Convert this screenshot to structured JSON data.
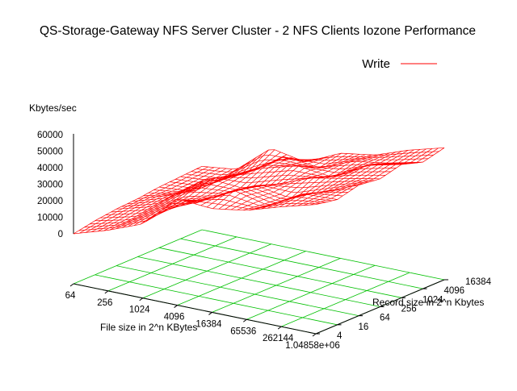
{
  "chart_data": {
    "type": "surface-3d",
    "title": "QS-Storage-Gateway NFS Server Cluster - 2 NFS Clients Iozone Performance",
    "zlabel": "Kbytes/sec",
    "xlabel": "File size in 2^n KBytes",
    "ylabel": "Record size in 2^n Kbytes",
    "legend": {
      "position": "top-right",
      "entries": [
        {
          "name": "Write",
          "color": "#ff0000"
        }
      ]
    },
    "x_ticks": [
      "64",
      "256",
      "1024",
      "4096",
      "16384",
      "65536",
      "262144",
      "1.04858e+06"
    ],
    "y_ticks": [
      "4",
      "16",
      "64",
      "256",
      "1024",
      "4096",
      "16384"
    ],
    "z_ticks": [
      "0",
      "10000",
      "20000",
      "30000",
      "40000",
      "50000",
      "60000"
    ],
    "zlim": [
      0,
      60000
    ],
    "grid": true,
    "series": [
      {
        "name": "Write",
        "x_file_size_kb": [
          64,
          256,
          1024,
          4096,
          16384,
          65536,
          262144,
          524288
        ],
        "y_record_size_kb": [
          4,
          16,
          64,
          256,
          1024,
          4096,
          16384
        ],
        "z_kbytes_per_sec": [
          [
            0,
            8000,
            18000,
            42000,
            40000,
            44000,
            52000,
            59000
          ],
          [
            3000,
            9000,
            22000,
            33000,
            47000,
            41000,
            55000,
            56000
          ],
          [
            5000,
            12000,
            25000,
            31000,
            44000,
            40000,
            50000,
            60000
          ],
          [
            6000,
            14000,
            32000,
            30000,
            38000,
            48000,
            53000,
            58000
          ],
          [
            8000,
            10000,
            27000,
            38000,
            45000,
            42000,
            56000,
            62000
          ],
          [
            9000,
            11000,
            23000,
            40000,
            37000,
            47000,
            51000,
            57000
          ],
          [
            10000,
            13000,
            34000,
            29000,
            41000,
            45000,
            54000,
            61000
          ]
        ]
      }
    ]
  }
}
